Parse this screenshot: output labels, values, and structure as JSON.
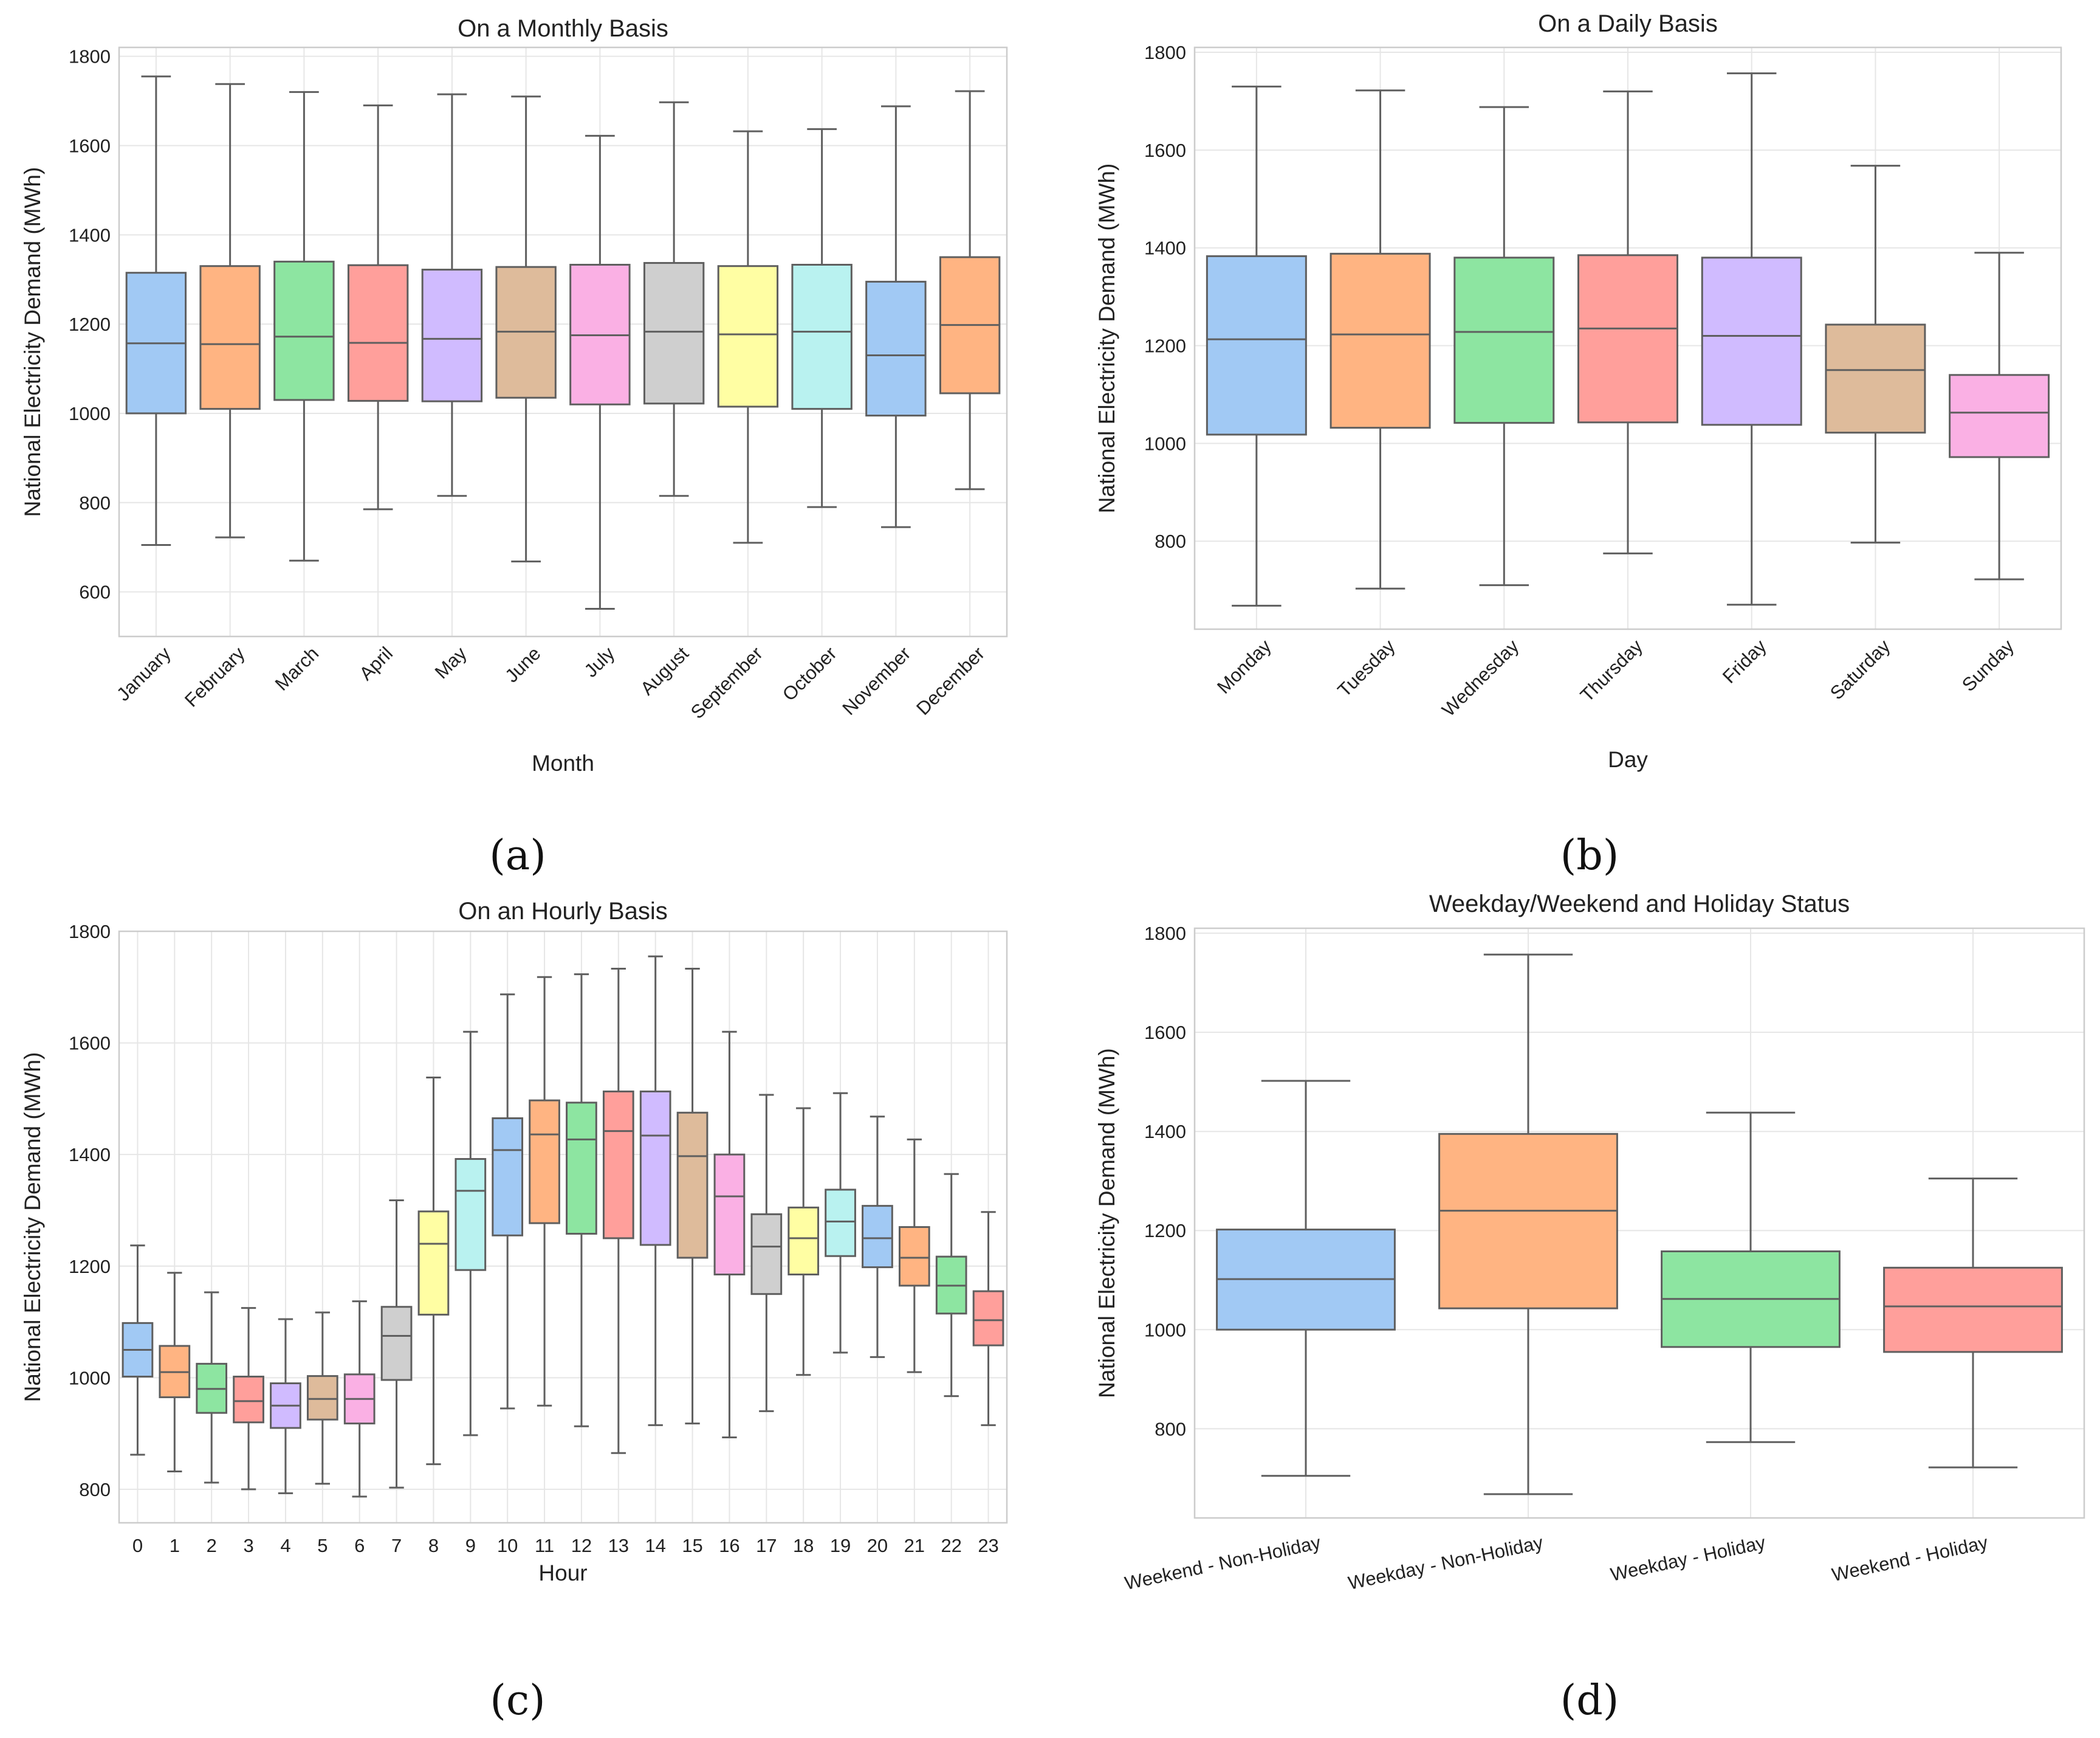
{
  "figure": {
    "captions": [
      "(a)",
      "(b)",
      "(c)",
      "(d)"
    ]
  },
  "chart_data": [
    {
      "type": "box",
      "title": "On a Monthly Basis",
      "xlabel": "Month",
      "ylabel": "National Electricity Demand (MWh)",
      "ylim": [
        500,
        1820
      ],
      "yticks": [
        600,
        800,
        1000,
        1200,
        1400,
        1600,
        1800
      ],
      "rotate_x_labels": true,
      "categories": [
        "January",
        "February",
        "March",
        "April",
        "May",
        "June",
        "July",
        "August",
        "September",
        "October",
        "November",
        "December"
      ],
      "colors": [
        "#a1c9f4",
        "#ffb482",
        "#8de5a1",
        "#ff9f9b",
        "#d0bbff",
        "#debb9b",
        "#fab0e4",
        "#cfcfcf",
        "#fffea3",
        "#b9f2f0",
        "#a1c9f4",
        "#ffb482"
      ],
      "whisker_low": [
        705,
        722,
        670,
        785,
        815,
        668,
        562,
        815,
        710,
        790,
        745,
        830
      ],
      "q1": [
        1000,
        1010,
        1030,
        1028,
        1027,
        1035,
        1020,
        1022,
        1015,
        1010,
        995,
        1045
      ],
      "median": [
        1157,
        1155,
        1172,
        1158,
        1167,
        1183,
        1175,
        1183,
        1177,
        1183,
        1130,
        1198
      ],
      "q3": [
        1315,
        1330,
        1340,
        1332,
        1322,
        1328,
        1333,
        1337,
        1330,
        1333,
        1295,
        1350
      ],
      "whisker_high": [
        1755,
        1738,
        1720,
        1690,
        1715,
        1710,
        1622,
        1697,
        1632,
        1637,
        1688,
        1722
      ]
    },
    {
      "type": "box",
      "title": "On a Daily Basis",
      "xlabel": "Day",
      "ylabel": "National Electricity Demand (MWh)",
      "ylim": [
        620,
        1810
      ],
      "yticks": [
        800,
        1000,
        1200,
        1400,
        1600,
        1800
      ],
      "rotate_x_labels": true,
      "categories": [
        "Monday",
        "Tuesday",
        "Wednesday",
        "Thursday",
        "Friday",
        "Saturday",
        "Sunday"
      ],
      "colors": [
        "#a1c9f4",
        "#ffb482",
        "#8de5a1",
        "#ff9f9b",
        "#d0bbff",
        "#debb9b",
        "#fab0e4"
      ],
      "whisker_low": [
        668,
        703,
        710,
        775,
        670,
        797,
        722
      ],
      "q1": [
        1018,
        1032,
        1042,
        1043,
        1038,
        1022,
        972
      ],
      "median": [
        1213,
        1223,
        1228,
        1235,
        1220,
        1150,
        1063
      ],
      "q3": [
        1383,
        1388,
        1380,
        1385,
        1380,
        1243,
        1140
      ],
      "whisker_high": [
        1730,
        1722,
        1688,
        1720,
        1757,
        1568,
        1390
      ]
    },
    {
      "type": "box",
      "title": "On an Hourly Basis",
      "xlabel": "Hour",
      "ylabel": "National Electricity Demand (MWh)",
      "ylim": [
        740,
        1800
      ],
      "yticks": [
        800,
        1000,
        1200,
        1400,
        1600,
        1800
      ],
      "rotate_x_labels": false,
      "categories": [
        "0",
        "1",
        "2",
        "3",
        "4",
        "5",
        "6",
        "7",
        "8",
        "9",
        "10",
        "11",
        "12",
        "13",
        "14",
        "15",
        "16",
        "17",
        "18",
        "19",
        "20",
        "21",
        "22",
        "23"
      ],
      "colors": [
        "#a1c9f4",
        "#ffb482",
        "#8de5a1",
        "#ff9f9b",
        "#d0bbff",
        "#debb9b",
        "#fab0e4",
        "#cfcfcf",
        "#fffea3",
        "#b9f2f0",
        "#a1c9f4",
        "#ffb482",
        "#8de5a1",
        "#ff9f9b",
        "#d0bbff",
        "#debb9b",
        "#fab0e4",
        "#cfcfcf",
        "#fffea3",
        "#b9f2f0",
        "#a1c9f4",
        "#ffb482",
        "#8de5a1",
        "#ff9f9b"
      ],
      "whisker_low": [
        862,
        832,
        812,
        800,
        793,
        810,
        787,
        803,
        845,
        897,
        945,
        950,
        913,
        865,
        915,
        918,
        893,
        940,
        1005,
        1045,
        1037,
        1010,
        967,
        915
      ],
      "q1": [
        1002,
        965,
        937,
        920,
        910,
        925,
        918,
        996,
        1113,
        1193,
        1255,
        1277,
        1258,
        1250,
        1238,
        1215,
        1185,
        1150,
        1185,
        1218,
        1198,
        1165,
        1115,
        1058
      ],
      "median": [
        1050,
        1010,
        980,
        958,
        950,
        962,
        962,
        1075,
        1240,
        1335,
        1408,
        1436,
        1427,
        1442,
        1434,
        1397,
        1325,
        1235,
        1250,
        1280,
        1250,
        1215,
        1165,
        1103
      ],
      "q3": [
        1098,
        1057,
        1025,
        1002,
        990,
        1003,
        1006,
        1127,
        1298,
        1392,
        1465,
        1497,
        1493,
        1513,
        1513,
        1475,
        1400,
        1293,
        1305,
        1337,
        1308,
        1270,
        1217,
        1155
      ],
      "whisker_high": [
        1237,
        1188,
        1153,
        1125,
        1105,
        1117,
        1137,
        1318,
        1538,
        1620,
        1687,
        1718,
        1723,
        1733,
        1755,
        1733,
        1620,
        1507,
        1483,
        1510,
        1468,
        1427,
        1365,
        1297
      ]
    },
    {
      "type": "box",
      "title": "Weekday/Weekend and Holiday Status",
      "xlabel": "",
      "ylabel": "National Electricity Demand (MWh)",
      "ylim": [
        620,
        1810
      ],
      "yticks": [
        800,
        1000,
        1200,
        1400,
        1600,
        1800
      ],
      "rotate_x_labels": true,
      "small_rotation": true,
      "categories": [
        "Weekend - Non-Holiday",
        "Weekday - Non-Holiday",
        "Weekday - Holiday",
        "Weekend - Holiday"
      ],
      "colors": [
        "#a1c9f4",
        "#ffb482",
        "#8de5a1",
        "#ff9f9b"
      ],
      "whisker_low": [
        705,
        668,
        773,
        722
      ],
      "q1": [
        1000,
        1043,
        965,
        955
      ],
      "median": [
        1102,
        1240,
        1062,
        1047
      ],
      "q3": [
        1202,
        1395,
        1158,
        1125
      ],
      "whisker_high": [
        1502,
        1757,
        1438,
        1305
      ]
    }
  ]
}
